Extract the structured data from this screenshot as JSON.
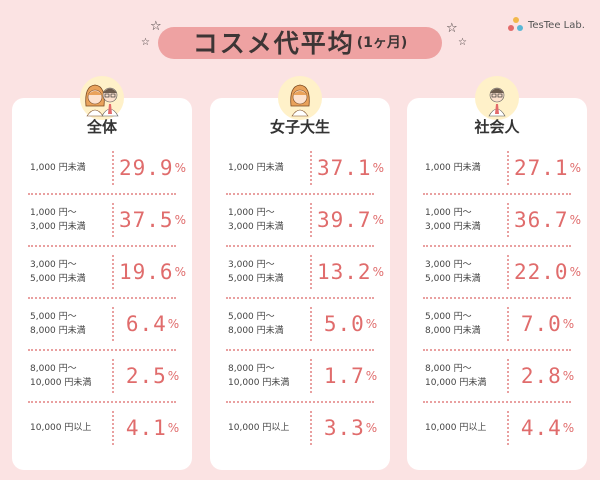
{
  "header": {
    "title": "コスメ代平均",
    "title_sub": "(1ヶ月)",
    "logo_text": "TesTee Lab."
  },
  "chart_data": {
    "type": "table",
    "title": "コスメ代平均(1ヶ月)",
    "categories": [
      [
        "1,000 円未満"
      ],
      [
        "1,000 円〜",
        "3,000 円未満"
      ],
      [
        "3,000 円〜",
        "5,000 円未満"
      ],
      [
        "5,000 円〜",
        "8,000 円未満"
      ],
      [
        "8,000 円〜",
        "10,000 円未満"
      ],
      [
        "10,000 円以上"
      ]
    ],
    "unit": "%",
    "series": [
      {
        "name": "全体",
        "values": [
          "29.9",
          "37.5",
          "19.6",
          "6.4",
          "2.5",
          "4.1"
        ]
      },
      {
        "name": "女子大生",
        "values": [
          "37.1",
          "39.7",
          "13.2",
          "5.0",
          "1.7",
          "3.3"
        ]
      },
      {
        "name": "社会人",
        "values": [
          "27.1",
          "36.7",
          "22.0",
          "7.0",
          "2.8",
          "4.4"
        ]
      }
    ]
  },
  "colors": {
    "background": "#fbe3e3",
    "title_band": "#eea2a2",
    "value": "#e06c6c",
    "divider": "#e9a0a0"
  },
  "avatars": [
    "woman-man-pair-icon",
    "woman-icon",
    "man-icon"
  ]
}
